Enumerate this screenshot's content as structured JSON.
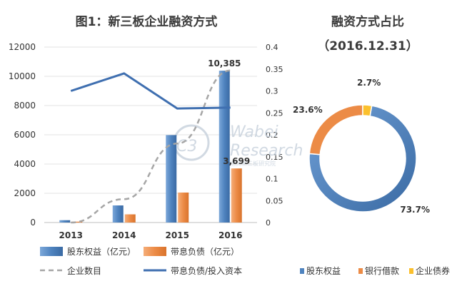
{
  "chart_data": [
    {
      "type": "bar",
      "title": "图1：新三板企业融资方式",
      "categories": [
        "2013",
        "2014",
        "2015",
        "2016"
      ],
      "y_ticks": [
        "0",
        "2000",
        "4000",
        "6000",
        "8000",
        "10000",
        "12000"
      ],
      "y2_ticks": [
        "0",
        "0.05",
        "0.1",
        "0.15",
        "0.2",
        "0.25",
        "0.3",
        "0.35",
        "0.4"
      ],
      "ylim": [
        0,
        12000
      ],
      "y2lim": [
        0,
        0.4
      ],
      "series": [
        {
          "name": "股东权益（亿元）",
          "type": "bar",
          "axis": "left",
          "color": "#4f83bf",
          "values": [
            160,
            1170,
            5980,
            10385
          ]
        },
        {
          "name": "带息负债（亿元）",
          "type": "bar",
          "axis": "left",
          "color": "#ec8b46",
          "values": [
            60,
            560,
            2050,
            3699
          ]
        },
        {
          "name": "企业数目",
          "type": "line",
          "axis": "left",
          "style": "dashed",
          "color": "#a6a6a6",
          "values": [
            0,
            1600,
            5400,
            10400
          ]
        },
        {
          "name": "带息负债/投入资本",
          "type": "line",
          "axis": "right",
          "color": "#3f6fb0",
          "values": [
            0.3,
            0.34,
            0.26,
            0.262
          ]
        }
      ],
      "data_labels": [
        {
          "series": 0,
          "index": 3,
          "text": "10,385",
          "color": "#3f6fb0"
        },
        {
          "series": 1,
          "index": 3,
          "text": "3,699",
          "color": "#e8752b"
        }
      ],
      "legend": [
        {
          "label": "股东权益（亿元）",
          "kind": "bar",
          "color": "#4f83bf"
        },
        {
          "label": "带息负债（亿元）",
          "kind": "bar",
          "color": "#ec8b46"
        },
        {
          "label": "企业数目",
          "kind": "dash",
          "color": "#a6a6a6"
        },
        {
          "label": "带息负债/投入资本",
          "kind": "line",
          "color": "#3f6fb0"
        }
      ],
      "legend_position": "bottom"
    },
    {
      "type": "pie",
      "donut": true,
      "title": "融资方式占比",
      "subtitle": "（2016.12.31）",
      "slices": [
        {
          "label": "股东权益",
          "value": 73.7,
          "text": "73.7%",
          "color": "#4f83bf"
        },
        {
          "label": "银行借款",
          "value": 23.6,
          "text": "23.6%",
          "color": "#ec8b46"
        },
        {
          "label": "企业债券",
          "value": 2.7,
          "text": "2.7%",
          "color": "#fbc02d"
        }
      ],
      "legend_position": "bottom"
    }
  ],
  "watermark": {
    "logo": "C3",
    "line1": "Wabei",
    "line2": "Research",
    "line3": "挖贝新三板研究院"
  }
}
